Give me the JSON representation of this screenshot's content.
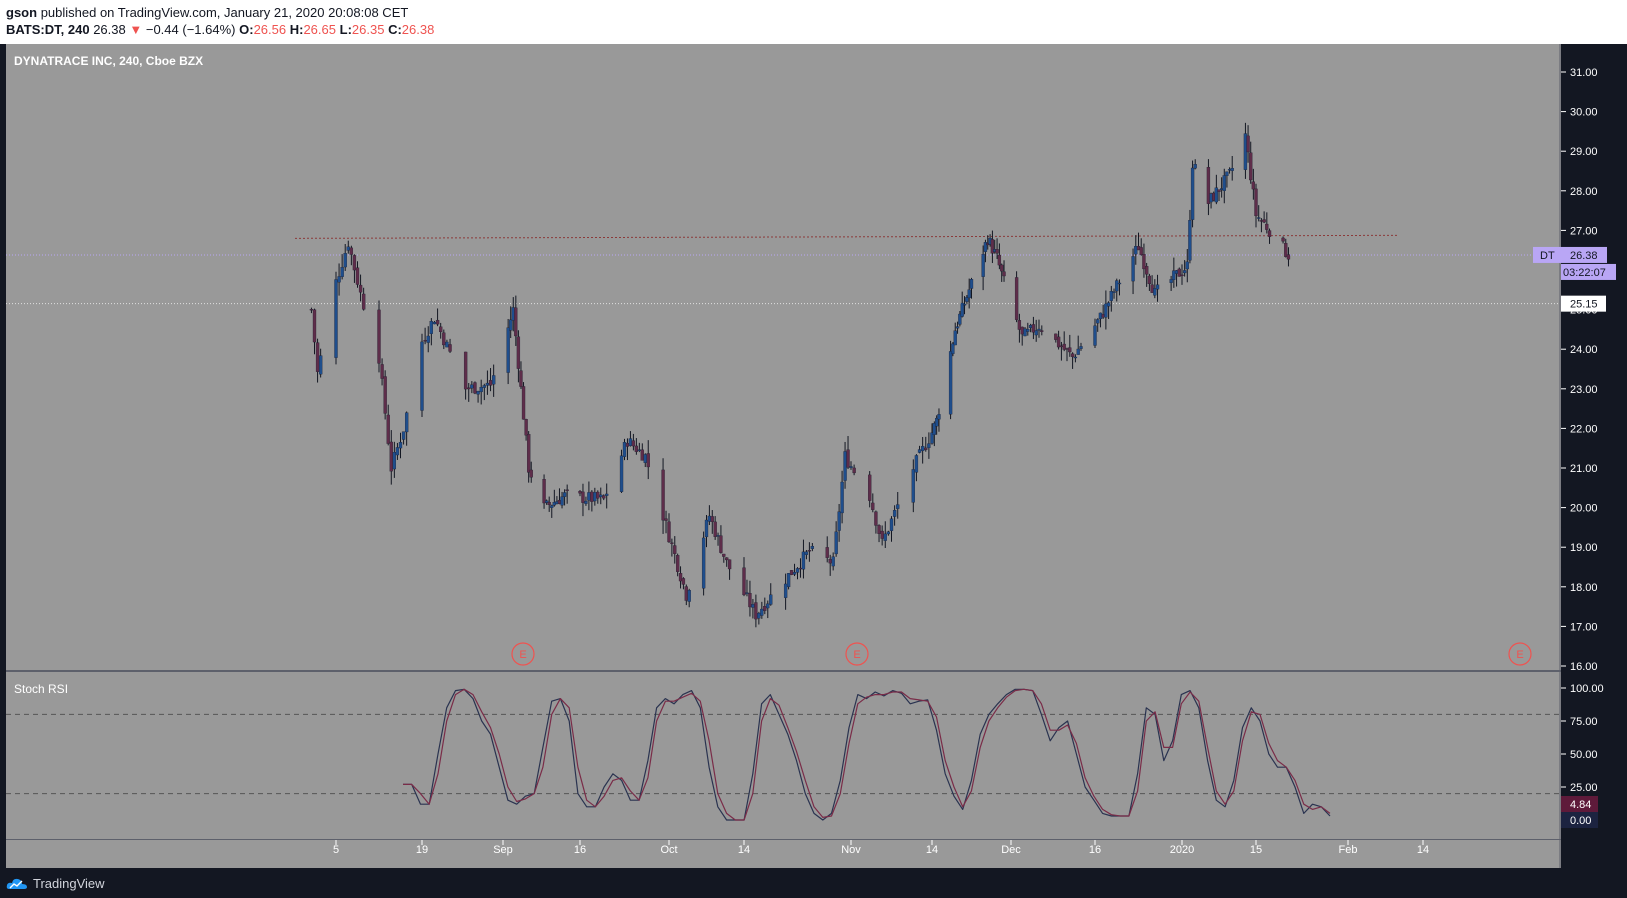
{
  "header": {
    "publisher": "gson",
    "published_text": "published on TradingView.com, January 21, 2020 20:08:08 CET",
    "symbol": "BATS:DT, 240",
    "last": "26.38",
    "change_arrow": "▼",
    "change": "−0.44 (−1.64%)",
    "o_label": "O:",
    "o": "26.56",
    "h_label": "H:",
    "h": "26.65",
    "l_label": "L:",
    "l": "26.35",
    "c_label": "C:",
    "c": "26.38"
  },
  "footer": {
    "brand": "TradingView",
    "logo_icon": "tradingview-cloud-icon"
  },
  "colors": {
    "pane_bg": "#999999",
    "up": "#1f4e8c",
    "down": "#5e2d4a",
    "price_tag": "#b9a6f5",
    "resistance": "#8b3a3a",
    "stoch_k": "#2a3350",
    "stoch_d": "#7a2c48"
  },
  "chart_data": [
    {
      "type": "candlestick",
      "title": "DYNATRACE INC, 240, Cboe BZX",
      "ylim": [
        16.0,
        31.5
      ],
      "y_ticks": [
        "31.00",
        "30.00",
        "29.00",
        "28.00",
        "27.00",
        "26.00",
        "25.00",
        "24.00",
        "23.00",
        "22.00",
        "21.00",
        "20.00",
        "19.00",
        "18.00",
        "17.00",
        "16.00"
      ],
      "x_ticks": [
        "5",
        "19",
        "Sep",
        "16",
        "Oct",
        "14",
        "Nov",
        "14",
        "Dec",
        "16",
        "2020",
        "15",
        "Feb",
        "14"
      ],
      "resistance_level": 26.85,
      "horizontal_levels": [
        26.38,
        25.15
      ],
      "price_tag": {
        "label": "DT",
        "value": "26.38",
        "countdown": "03:22:07"
      },
      "crosshair_tag": "25.15",
      "earnings_markers": [
        "E",
        "E",
        "E"
      ],
      "anchors": [
        {
          "date": "Aug 1",
          "close": 25.0
        },
        {
          "date": "Aug 2",
          "close": 23.4
        },
        {
          "date": "Aug 5",
          "close": 25.7
        },
        {
          "date": "Aug 7",
          "close": 26.7
        },
        {
          "date": "Aug 9",
          "close": 25.4
        },
        {
          "date": "Aug 12",
          "close": 23.8
        },
        {
          "date": "Aug 14",
          "close": 21.0
        },
        {
          "date": "Aug 16",
          "close": 22.0
        },
        {
          "date": "Aug 19",
          "close": 24.2
        },
        {
          "date": "Aug 21",
          "close": 24.8
        },
        {
          "date": "Aug 26",
          "close": 23.0
        },
        {
          "date": "Aug 30",
          "close": 23.1
        },
        {
          "date": "Sep 3",
          "close": 25.0
        },
        {
          "date": "Sep 6",
          "close": 21.0
        },
        {
          "date": "Sep 9",
          "close": 20.0
        },
        {
          "date": "Sep 13",
          "close": 20.3
        },
        {
          "date": "Sep 20",
          "close": 20.2
        },
        {
          "date": "Sep 24",
          "close": 21.7
        },
        {
          "date": "Sep 27",
          "close": 21.3
        },
        {
          "date": "Oct 1",
          "close": 19.3
        },
        {
          "date": "Oct 4",
          "close": 17.8
        },
        {
          "date": "Oct 8",
          "close": 19.8
        },
        {
          "date": "Oct 11",
          "close": 18.6
        },
        {
          "date": "Oct 16",
          "close": 17.3
        },
        {
          "date": "Oct 21",
          "close": 18.2
        },
        {
          "date": "Oct 25",
          "close": 18.9
        },
        {
          "date": "Oct 29",
          "close": 18.6
        },
        {
          "date": "Oct 31",
          "close": 21.3
        },
        {
          "date": "Nov 4",
          "close": 20.3
        },
        {
          "date": "Nov 6",
          "close": 19.1
        },
        {
          "date": "Nov 11",
          "close": 21.0
        },
        {
          "date": "Nov 15",
          "close": 22.2
        },
        {
          "date": "Nov 19",
          "close": 24.5
        },
        {
          "date": "Nov 22",
          "close": 25.5
        },
        {
          "date": "Nov 26",
          "close": 26.8
        },
        {
          "date": "Nov 28",
          "close": 26.3
        },
        {
          "date": "Dec 3",
          "close": 24.3
        },
        {
          "date": "Dec 6",
          "close": 24.6
        },
        {
          "date": "Dec 12",
          "close": 23.8
        },
        {
          "date": "Dec 17",
          "close": 24.8
        },
        {
          "date": "Dec 20",
          "close": 25.6
        },
        {
          "date": "Dec 24",
          "close": 26.6
        },
        {
          "date": "Dec 27",
          "close": 25.4
        },
        {
          "date": "Jan 2",
          "close": 26.1
        },
        {
          "date": "Jan 3",
          "close": 28.7
        },
        {
          "date": "Jan 6",
          "close": 27.7
        },
        {
          "date": "Jan 10",
          "close": 28.4
        },
        {
          "date": "Jan 13",
          "close": 29.4
        },
        {
          "date": "Jan 15",
          "close": 27.4
        },
        {
          "date": "Jan 17",
          "close": 27.1
        },
        {
          "date": "Jan 21",
          "close": 26.38
        }
      ]
    },
    {
      "type": "line",
      "title": "Stoch RSI",
      "ylim": [
        0,
        100
      ],
      "y_ticks": [
        "100.00",
        "75.00",
        "50.00",
        "25.00"
      ],
      "bands": [
        80,
        20
      ],
      "last_k_label": "4.84",
      "last_d_label": "0.00",
      "series": [
        {
          "values": [
            27,
            27,
            12,
            12,
            50,
            85,
            98,
            99,
            92,
            75,
            65,
            40,
            15,
            12,
            18,
            20,
            55,
            90,
            92,
            75,
            20,
            10,
            10,
            25,
            35,
            30,
            15,
            15,
            45,
            85,
            92,
            88,
            95,
            98,
            85,
            40,
            10,
            0,
            0,
            0,
            35,
            88,
            95,
            80,
            65,
            45,
            20,
            5,
            0,
            5,
            30,
            70,
            95,
            92,
            97,
            94,
            98,
            96,
            88,
            90,
            91,
            68,
            35,
            18,
            8,
            30,
            65,
            80,
            88,
            95,
            99,
            99,
            98,
            80,
            60,
            70,
            75,
            50,
            25,
            15,
            5,
            3,
            3,
            3,
            35,
            85,
            80,
            45,
            60,
            95,
            98,
            85,
            45,
            15,
            10,
            30,
            70,
            85,
            75,
            50,
            40,
            40,
            25,
            5,
            12,
            10,
            3
          ]
        },
        {
          "values": [
            27,
            27,
            20,
            12,
            35,
            75,
            95,
            99,
            95,
            82,
            70,
            50,
            25,
            14,
            16,
            20,
            40,
            80,
            92,
            85,
            40,
            15,
            10,
            18,
            30,
            32,
            22,
            15,
            32,
            75,
            90,
            90,
            93,
            96,
            90,
            60,
            20,
            5,
            0,
            0,
            20,
            75,
            92,
            87,
            70,
            52,
            30,
            10,
            2,
            3,
            20,
            58,
            88,
            93,
            95,
            95,
            97,
            97,
            92,
            91,
            90,
            78,
            45,
            25,
            10,
            22,
            55,
            75,
            85,
            93,
            98,
            99,
            98,
            88,
            68,
            68,
            72,
            58,
            32,
            18,
            8,
            4,
            3,
            3,
            22,
            75,
            82,
            55,
            55,
            88,
            97,
            90,
            55,
            22,
            12,
            22,
            60,
            82,
            80,
            58,
            45,
            40,
            30,
            12,
            8,
            10,
            5
          ]
        }
      ]
    }
  ]
}
